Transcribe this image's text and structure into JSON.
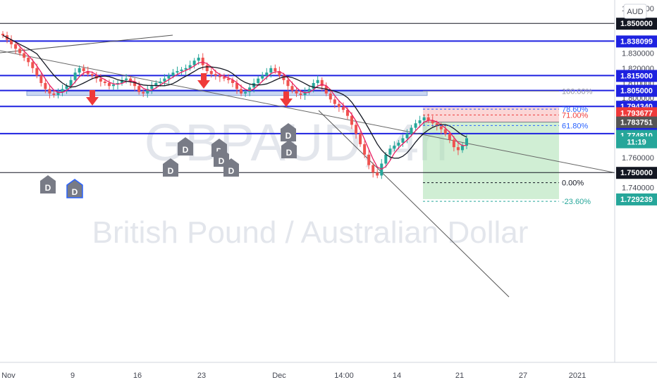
{
  "chart_data": {
    "type": "candlestick",
    "symbol_watermark": "GBPAUD, 4h",
    "pair_watermark": "British Pound / Australian Dollar",
    "currency_label": "AUD",
    "countdown": "11:19",
    "ylim": [
      1.7305,
      1.8645
    ],
    "y_ticks": [
      "1.860000",
      "1.850000",
      "1.840000",
      "1.830000",
      "1.820000",
      "1.810000",
      "1.800000",
      "1.790000",
      "1.780000",
      "1.770000",
      "1.760000",
      "1.750000",
      "1.740000",
      "1.730000"
    ],
    "x_ticks": [
      "Nov",
      "9",
      "16",
      "23",
      "Dec",
      "14:00",
      "14",
      "21",
      "27",
      "2021"
    ],
    "price_labels": [
      {
        "text": "1.850000",
        "y": 1.85,
        "bg": "#131722",
        "fg": "#ffffff"
      },
      {
        "text": "1.838099",
        "y": 1.838099,
        "bg": "#1e22e0",
        "fg": "#ffffff"
      },
      {
        "text": "1.815000",
        "y": 1.815,
        "bg": "#1e22e0",
        "fg": "#ffffff"
      },
      {
        "text": "1.805000",
        "y": 1.805,
        "bg": "#1e22e0",
        "fg": "#ffffff"
      },
      {
        "text": "1.794340",
        "y": 1.79434,
        "bg": "#1e22e0",
        "fg": "#ffffff"
      },
      {
        "text": "1.793677",
        "y": 1.79,
        "bg": "#ef3a3a",
        "fg": "#ffffff"
      },
      {
        "text": "1.783751",
        "y": 1.78375,
        "bg": "#555555",
        "fg": "#ffffff"
      },
      {
        "text": "1.776104",
        "y": 1.776104,
        "bg": "#1e22e0",
        "fg": "#ffffff"
      },
      {
        "text": "1.774810",
        "y": 1.77481,
        "bg": "#26a69a",
        "fg": "#ffffff"
      },
      {
        "text": "11:19",
        "y": 1.7705,
        "bg": "#26a69a",
        "fg": "#ffffff"
      },
      {
        "text": "1.750000",
        "y": 1.75,
        "bg": "#131722",
        "fg": "#ffffff"
      },
      {
        "text": "1.729239",
        "y": 1.7322,
        "bg": "#26a69a",
        "fg": "#ffffff"
      }
    ],
    "horizontal_levels": [
      {
        "y": 1.85,
        "color": "#131722",
        "width": 1
      },
      {
        "y": 1.838099,
        "color": "#1e22e0",
        "width": 2
      },
      {
        "y": 1.815,
        "color": "#1e22e0",
        "width": 2
      },
      {
        "y": 1.805,
        "color": "#1e22e0",
        "width": 2
      },
      {
        "y": 1.79434,
        "color": "#1e22e0",
        "width": 2
      },
      {
        "y": 1.776104,
        "color": "#1e22e0",
        "width": 2
      },
      {
        "y": 1.75,
        "color": "#131722",
        "width": 1
      }
    ],
    "fib_levels": [
      {
        "label": "100.00%",
        "y": 1.8045,
        "color": "#9598a1"
      },
      {
        "label": "78.60%",
        "y": 1.7925,
        "color": "#2962ff"
      },
      {
        "label": "71.00%",
        "y": 1.7886,
        "color": "#ef3a3a"
      },
      {
        "label": "61.80%",
        "y": 1.7815,
        "color": "#2962ff"
      },
      {
        "label": "0.00%",
        "y": 1.7432,
        "color": "#131722"
      },
      {
        "label": "-23.60%",
        "y": 1.7307,
        "color": "#26a69a"
      }
    ],
    "support_zone": [
      1.8033,
      1.8045
    ],
    "position": {
      "entry": 1.7838,
      "stop": 1.7937,
      "target": 1.7322
    },
    "dividend_markers": [
      "D",
      "D",
      "D",
      "D",
      "D",
      "D",
      "D",
      "D",
      "D"
    ],
    "arrows": 4,
    "candles": [
      1.842,
      1.839,
      1.836,
      1.833,
      1.83,
      1.827,
      1.824,
      1.82,
      1.815,
      1.81,
      1.806,
      1.803,
      1.802,
      1.804,
      1.806,
      1.808,
      1.812,
      1.817,
      1.82,
      1.818,
      1.816,
      1.815,
      1.813,
      1.811,
      1.81,
      1.808,
      1.809,
      1.81,
      1.812,
      1.813,
      1.811,
      1.808,
      1.804,
      1.803,
      1.806,
      1.808,
      1.81,
      1.811,
      1.813,
      1.815,
      1.817,
      1.818,
      1.819,
      1.82,
      1.822,
      1.825,
      1.827,
      1.822,
      1.818,
      1.816,
      1.815,
      1.814,
      1.813,
      1.812,
      1.81,
      1.806,
      1.803,
      1.804,
      1.807,
      1.81,
      1.813,
      1.815,
      1.817,
      1.82,
      1.818,
      1.815,
      1.812,
      1.808,
      1.805,
      1.803,
      1.802,
      1.804,
      1.806,
      1.81,
      1.812,
      1.808,
      1.803,
      1.799,
      1.796,
      1.794,
      1.792,
      1.788,
      1.782,
      1.776,
      1.769,
      1.762,
      1.755,
      1.75,
      1.748,
      1.756,
      1.762,
      1.766,
      1.768,
      1.77,
      1.773,
      1.776,
      1.78,
      1.783,
      1.785,
      1.787,
      1.785,
      1.783,
      1.781,
      1.779,
      1.776,
      1.772,
      1.767,
      1.765,
      1.768,
      1.773
    ]
  }
}
